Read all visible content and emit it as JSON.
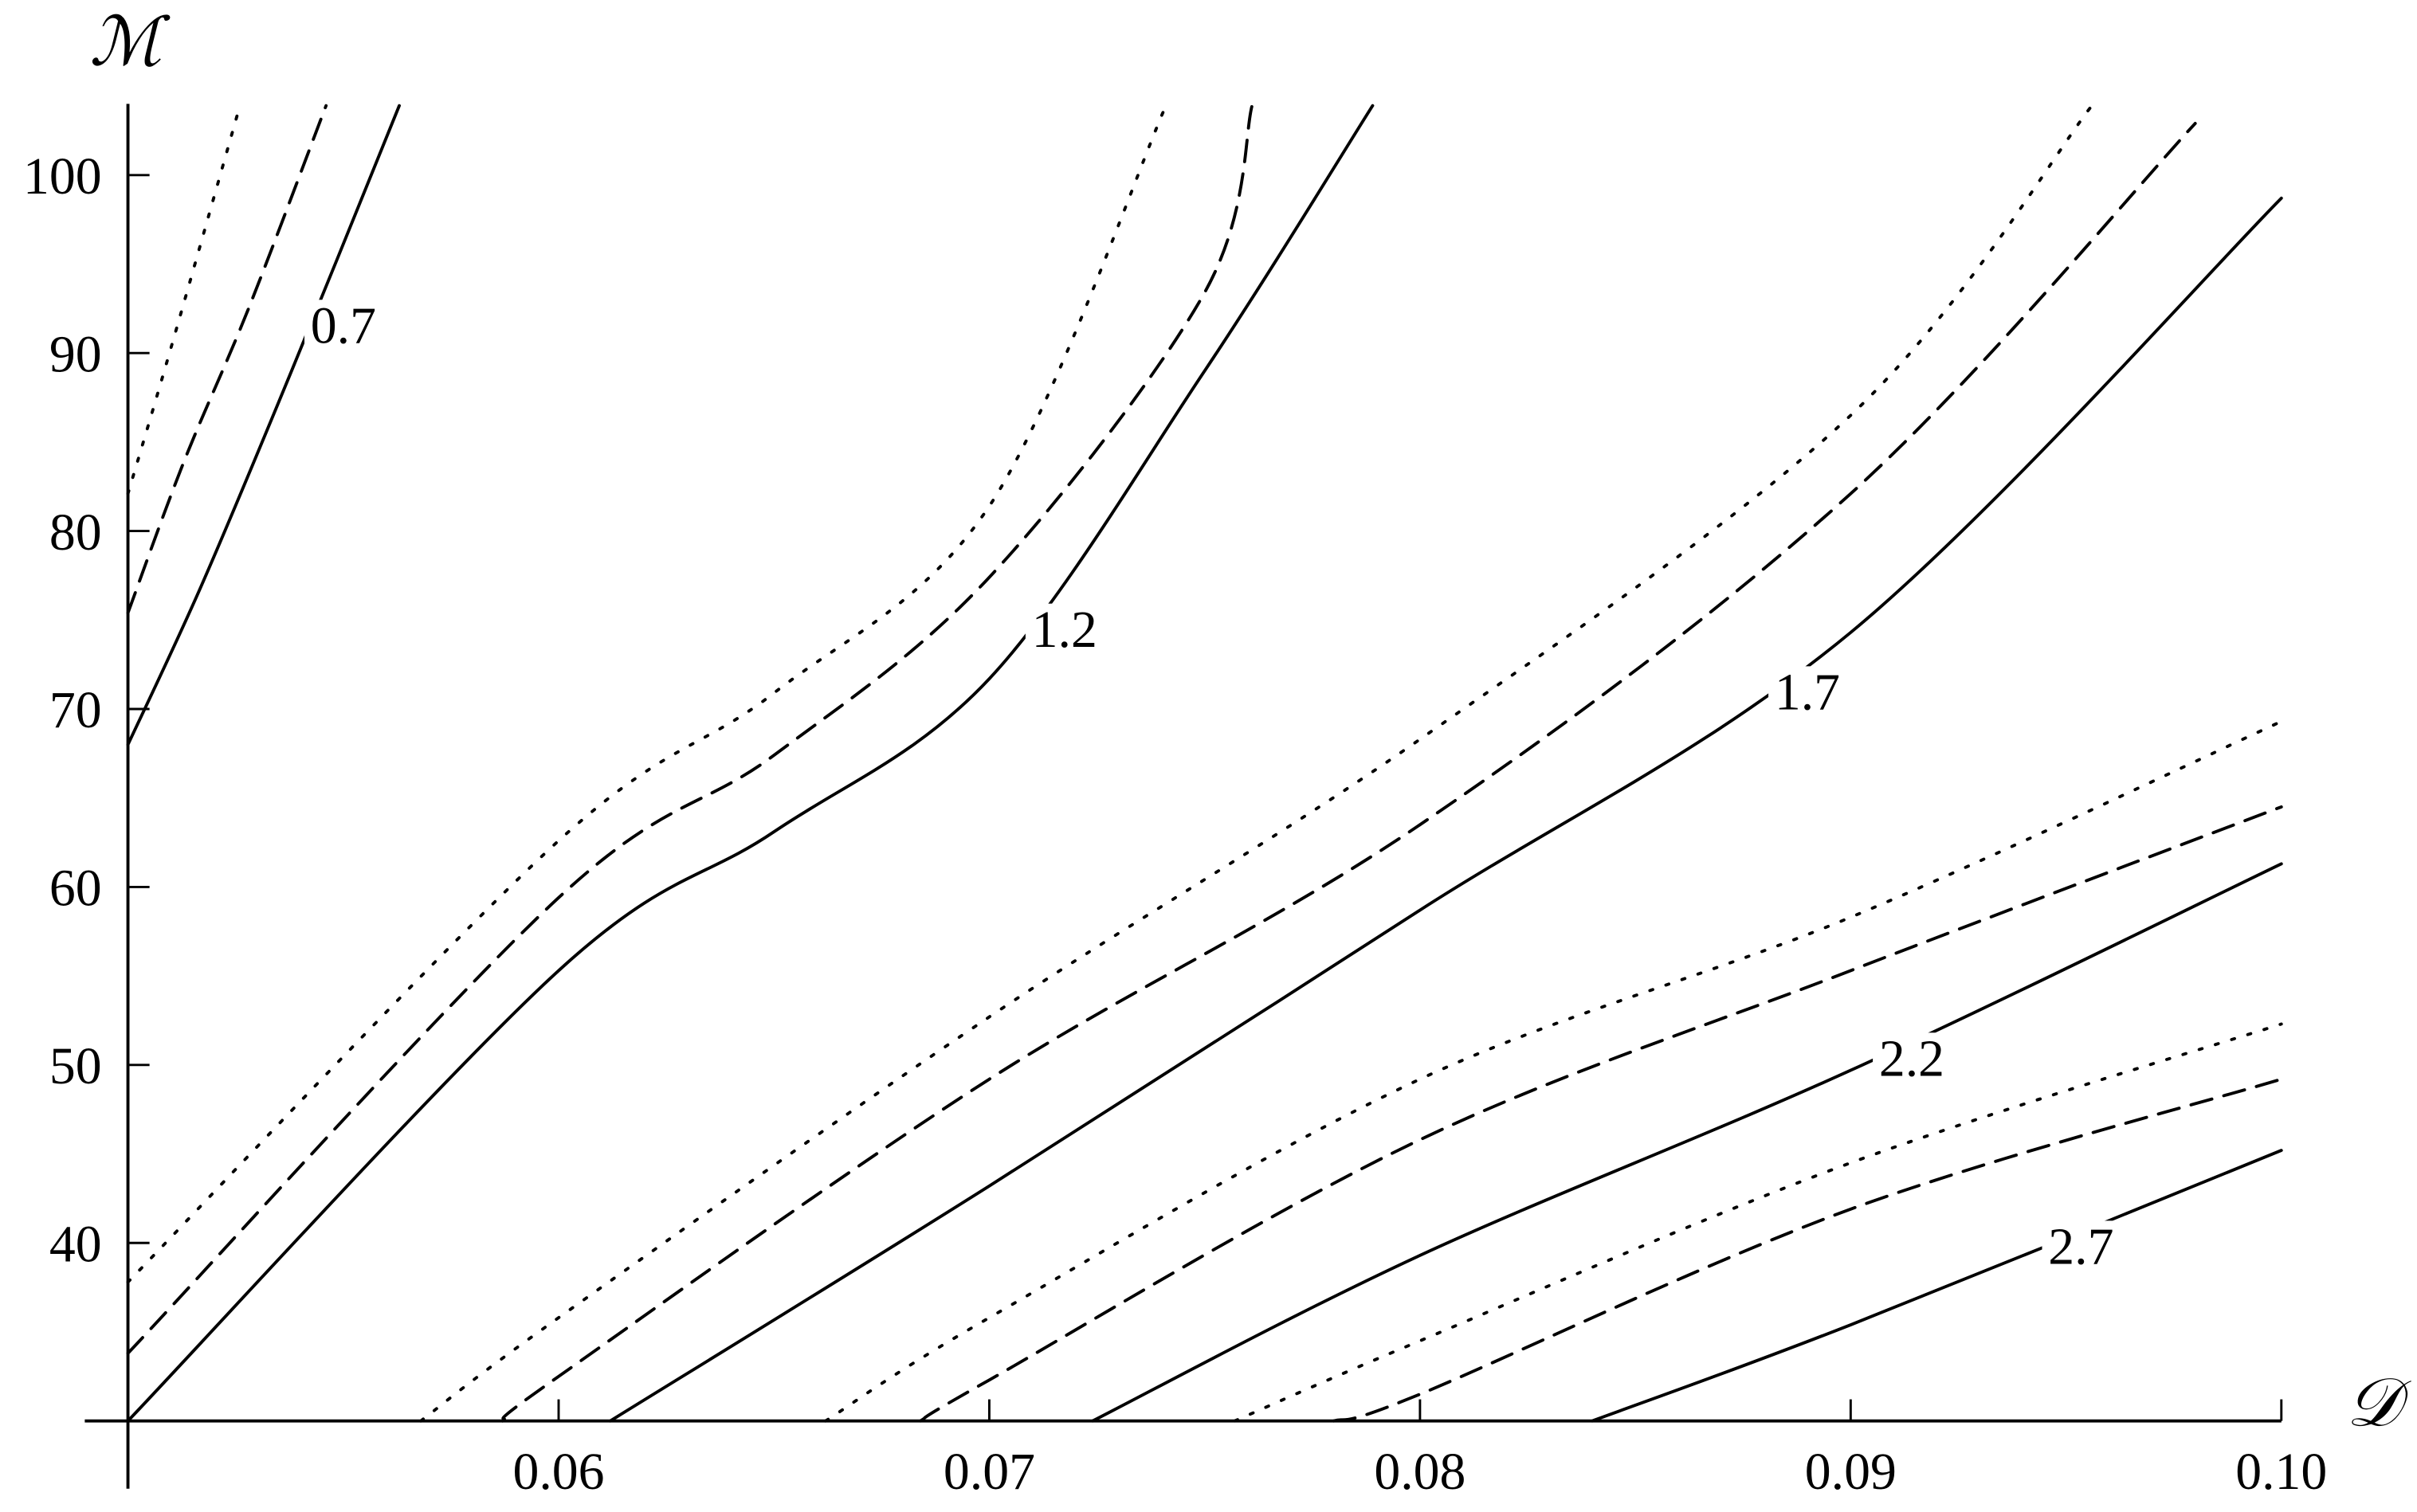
{
  "chart_data": {
    "type": "line",
    "x_label": "𝒟",
    "y_label": "ℳ",
    "xlim": [
      0.05,
      0.1
    ],
    "ylim": [
      30,
      104
    ],
    "xticks": [
      0.06,
      0.07,
      0.08,
      0.09,
      {
        "value": 0.1,
        "label": "0.10"
      }
    ],
    "yticks": [
      40,
      50,
      60,
      70,
      80,
      90,
      100
    ],
    "series": [
      {
        "name": "0.7",
        "style": "solid",
        "color": "#000000",
        "x": [
          0.05,
          0.0517,
          0.0538,
          0.0563
        ],
        "values": [
          68.0,
          76.9,
          89.0,
          103.9
        ]
      },
      {
        "style": "dashed",
        "color": "#000000",
        "x": [
          0.05,
          0.0513,
          0.0528,
          0.0546
        ],
        "values": [
          75.4,
          83.9,
          92.5,
          103.9
        ]
      },
      {
        "style": "dotted",
        "color": "#000000",
        "x": [
          0.05,
          0.051,
          0.0526
        ],
        "values": [
          82.1,
          90.3,
          103.9
        ]
      },
      {
        "name": "1.2",
        "style": "solid",
        "color": "#000000",
        "x": [
          0.05,
          0.06,
          0.065,
          0.07,
          0.075,
          0.0789
        ],
        "values": [
          30,
          55.3,
          63.1,
          71.7,
          89.0,
          103.9
        ]
      },
      {
        "style": "dashed",
        "color": "#000000",
        "x": [
          0.05,
          0.06,
          0.065,
          0.07,
          0.075,
          0.0761
        ],
        "values": [
          33.8,
          59.4,
          67.4,
          77.4,
          93.4,
          103.9
        ]
      },
      {
        "style": "dotted",
        "color": "#000000",
        "x": [
          0.05,
          0.06,
          0.065,
          0.07,
          0.0741
        ],
        "values": [
          37.8,
          62.6,
          70.9,
          81.4,
          103.9
        ]
      },
      {
        "name": "1.7",
        "style": "solid",
        "color": "#000000",
        "x": [
          0.0612,
          0.07,
          0.08,
          0.09,
          0.1
        ],
        "values": [
          30,
          43.2,
          58.7,
          74.3,
          98.7
        ]
      },
      {
        "style": "dashed",
        "color": "#000000",
        "x": [
          0.0587,
          0.06,
          0.07,
          0.08,
          0.09,
          0.098
        ],
        "values": [
          30,
          32.5,
          49.2,
          63.5,
          82.1,
          102.9
        ]
      },
      {
        "style": "dotted",
        "color": "#000000",
        "x": [
          0.0568,
          0.06,
          0.07,
          0.08,
          0.09,
          0.0956
        ],
        "values": [
          30,
          35.8,
          52.7,
          68.3,
          86.5,
          103.9
        ]
      },
      {
        "name": "2.2",
        "style": "solid",
        "color": "#000000",
        "x": [
          0.0724,
          0.08,
          0.09,
          0.1
        ],
        "values": [
          30,
          39.3,
          49.7,
          61.3
        ]
      },
      {
        "style": "dashed",
        "color": "#000000",
        "x": [
          0.0684,
          0.07,
          0.08,
          0.09,
          0.1
        ],
        "values": [
          30,
          32.3,
          45.8,
          55.3,
          64.5
        ]
      },
      {
        "style": "dotted",
        "color": "#000000",
        "x": [
          0.0662,
          0.07,
          0.08,
          0.09,
          0.1
        ],
        "values": [
          30,
          35.8,
          49.2,
          58.3,
          69.3
        ]
      },
      {
        "name": "2.7",
        "style": "solid",
        "color": "#000000",
        "x": [
          0.084,
          0.09,
          0.1
        ],
        "values": [
          30,
          35.4,
          45.2
        ]
      },
      {
        "style": "dashed",
        "color": "#000000",
        "x": [
          0.078,
          0.08,
          0.09,
          0.1
        ],
        "values": [
          30,
          31.5,
          41.9,
          49.2
        ]
      },
      {
        "style": "dotted",
        "color": "#000000",
        "x": [
          0.0757,
          0.08,
          0.09,
          0.1
        ],
        "values": [
          30,
          34.5,
          44.5,
          52.3
        ]
      }
    ]
  }
}
